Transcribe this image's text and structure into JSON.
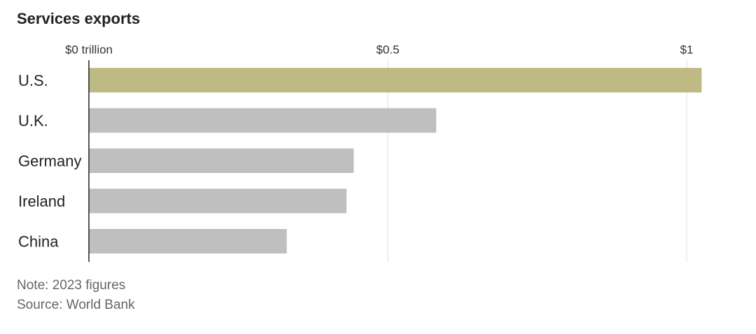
{
  "chart_data": {
    "type": "hbar",
    "title": "Services exports",
    "categories": [
      "U.S.",
      "U.K.",
      "Germany",
      "Ireland",
      "China"
    ],
    "values": [
      1.025,
      0.581,
      0.443,
      0.431,
      0.331
    ],
    "colors": [
      "#bfb983",
      "#bfbfbf",
      "#bfbfbf",
      "#bfbfbf",
      "#bfbfbf"
    ],
    "xlim": [
      0,
      1.1
    ],
    "xticks": [
      {
        "value": 0,
        "label": "$0 trillion"
      },
      {
        "value": 0.5,
        "label": "$0.5"
      },
      {
        "value": 1,
        "label": "$1"
      }
    ],
    "grid": true,
    "annotations": [
      "Note: 2023 figures",
      "Source: World Bank"
    ]
  }
}
